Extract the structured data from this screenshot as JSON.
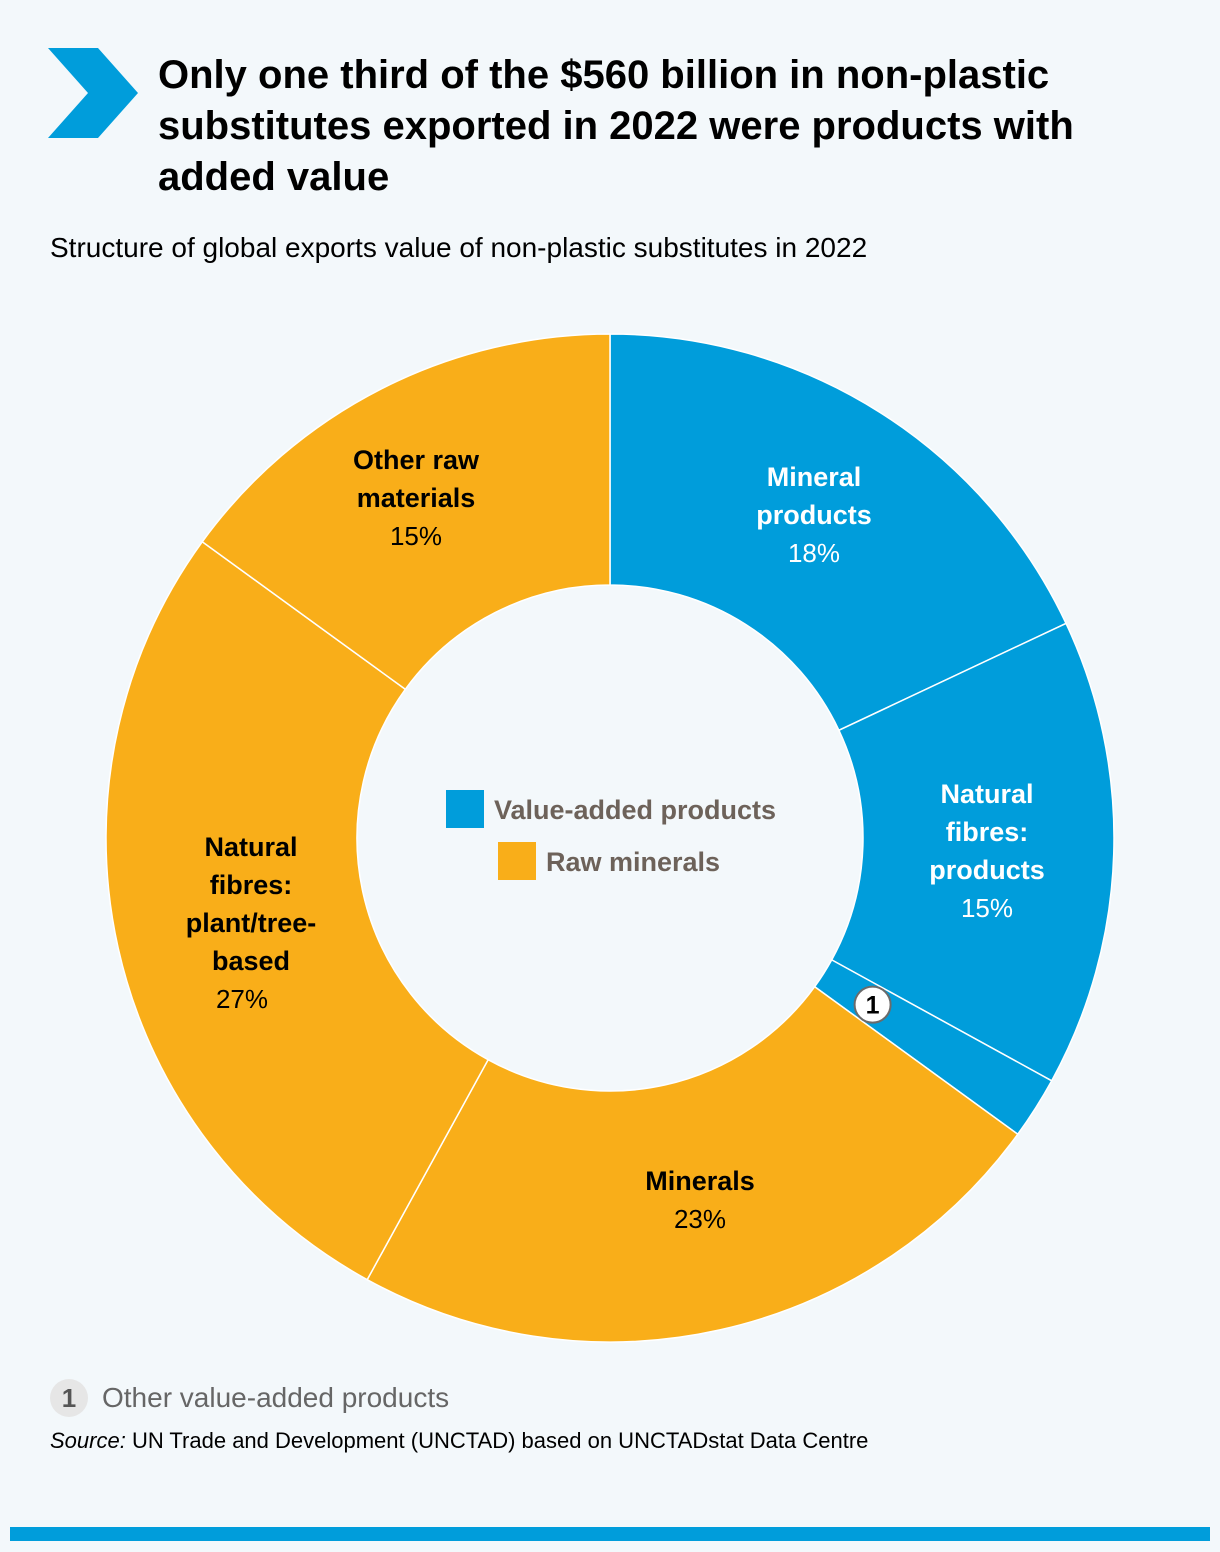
{
  "header": {
    "title": "Only one third of the $560 billion in non-plastic substitutes exported in 2022 were products with added value",
    "subtitle": "Structure of global exports value of non-plastic substitutes in 2022"
  },
  "chart_data": {
    "type": "pie",
    "categories": [
      "Mineral products",
      "Natural fibres: products",
      "Other value-added products",
      "Minerals",
      "Natural fibres: plant/tree-based",
      "Other raw materials"
    ],
    "values": [
      18,
      15,
      2,
      23,
      27,
      15
    ],
    "value_labels": [
      "18%",
      "15%",
      "",
      "23%",
      "27%",
      "15%"
    ],
    "groups": [
      "Value-added products",
      "Value-added products",
      "Value-added products",
      "Raw minerals",
      "Raw minerals",
      "Raw minerals"
    ],
    "legend": {
      "placement": "center",
      "items": [
        {
          "label": "Value-added products",
          "color": "#009ddb"
        },
        {
          "label": "Raw minerals",
          "color": "#f9ae19"
        }
      ]
    },
    "colors": {
      "value_added": "#009ddb",
      "raw": "#f9ae19"
    },
    "marker": {
      "text": "1",
      "category": "Other value-added products"
    }
  },
  "footnote": {
    "marker": "1",
    "text": "Other value-added products"
  },
  "source": {
    "label": "Source:",
    "text": " UN Trade and Development (UNCTAD) based on UNCTADstat Data Centre"
  },
  "colors": {
    "accent": "#009ddb",
    "background": "#f3f8fb"
  }
}
